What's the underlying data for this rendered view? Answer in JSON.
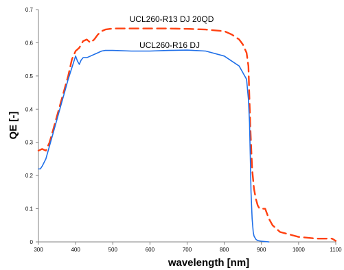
{
  "chart_data": {
    "type": "line",
    "xlabel": "wavelength [nm]",
    "ylabel": "QE [-]",
    "xlim": [
      300,
      1100
    ],
    "ylim": [
      0,
      0.7
    ],
    "xticks": [
      300,
      400,
      500,
      600,
      700,
      800,
      900,
      1000,
      1100
    ],
    "yticks": [
      0,
      0.1,
      0.2,
      0.3,
      0.4,
      0.5,
      0.6,
      0.7
    ],
    "grid": false,
    "colors": {
      "axis": "#808080",
      "series_blue": "#1f6fe8",
      "series_red": "#ff4010"
    },
    "series": [
      {
        "name": "UCL260-R13 DJ 20QD",
        "color": "#ff4010",
        "style": "dashed",
        "x": [
          300,
          310,
          320,
          330,
          340,
          350,
          360,
          370,
          380,
          390,
          400,
          410,
          420,
          430,
          440,
          450,
          460,
          470,
          480,
          500,
          550,
          600,
          650,
          700,
          750,
          800,
          820,
          840,
          850,
          860,
          865,
          870,
          875,
          880,
          885,
          890,
          895,
          900,
          910,
          920,
          930,
          950,
          1000,
          1050,
          1090,
          1100
        ],
        "y": [
          0.275,
          0.28,
          0.275,
          0.3,
          0.34,
          0.38,
          0.42,
          0.46,
          0.5,
          0.55,
          0.575,
          0.585,
          0.605,
          0.61,
          0.6,
          0.61,
          0.625,
          0.635,
          0.64,
          0.643,
          0.643,
          0.643,
          0.643,
          0.642,
          0.64,
          0.635,
          0.625,
          0.61,
          0.595,
          0.57,
          0.53,
          0.35,
          0.22,
          0.16,
          0.13,
          0.11,
          0.1,
          0.1,
          0.1,
          0.07,
          0.05,
          0.03,
          0.015,
          0.01,
          0.01,
          0.003
        ]
      },
      {
        "name": "UCL260-R16 DJ",
        "color": "#1f6fe8",
        "style": "solid",
        "x": [
          300,
          305,
          310,
          320,
          330,
          340,
          350,
          360,
          370,
          380,
          390,
          400,
          405,
          410,
          415,
          420,
          430,
          440,
          450,
          460,
          470,
          480,
          500,
          550,
          600,
          650,
          700,
          750,
          800,
          820,
          840,
          850,
          860,
          865,
          868,
          870,
          872,
          875,
          878,
          880,
          885,
          890,
          900,
          910,
          920
        ],
        "y": [
          0.22,
          0.22,
          0.228,
          0.25,
          0.29,
          0.33,
          0.37,
          0.41,
          0.45,
          0.49,
          0.525,
          0.56,
          0.545,
          0.535,
          0.548,
          0.555,
          0.555,
          0.56,
          0.565,
          0.57,
          0.575,
          0.577,
          0.577,
          0.575,
          0.575,
          0.577,
          0.578,
          0.575,
          0.56,
          0.545,
          0.53,
          0.51,
          0.49,
          0.43,
          0.36,
          0.26,
          0.15,
          0.07,
          0.03,
          0.018,
          0.008,
          0.004,
          0.002,
          0.001,
          0
        ]
      }
    ]
  }
}
